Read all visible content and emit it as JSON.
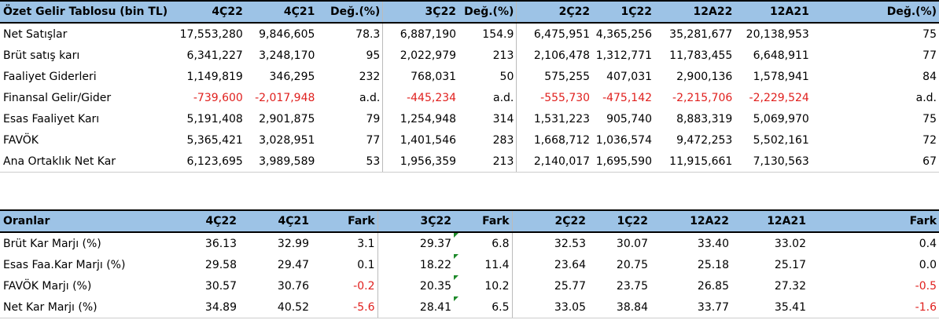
{
  "income": {
    "title": "Özet Gelir Tablosu (bin TL)",
    "headers": [
      "4Ç22",
      "4Ç21",
      "Değ.(%)",
      "3Ç22",
      "Değ.(%)",
      "2Ç22",
      "1Ç22",
      "12A22",
      "12A21",
      "Değ.(%)"
    ],
    "rows": [
      {
        "label": "Net Satışlar",
        "values": [
          "17,553,280",
          "9,846,605",
          "78.3",
          "6,887,190",
          "154.9",
          "6,475,951",
          "4,365,256",
          "35,281,677",
          "20,138,953",
          "75"
        ]
      },
      {
        "label": "Brüt satış karı",
        "values": [
          "6,341,227",
          "3,248,170",
          "95",
          "2,022,979",
          "213",
          "2,106,478",
          "1,312,771",
          "11,783,455",
          "6,648,911",
          "77"
        ]
      },
      {
        "label": "Faaliyet Giderleri",
        "values": [
          "1,149,819",
          "346,295",
          "232",
          "768,031",
          "50",
          "575,255",
          "407,031",
          "2,900,136",
          "1,578,941",
          "84"
        ]
      },
      {
        "label": "Finansal Gelir/Gider",
        "values": [
          "-739,600",
          "-2,017,948",
          "a.d.",
          "-445,234",
          "a.d.",
          "-555,730",
          "-475,142",
          "-2,215,706",
          "-2,229,524",
          "a.d."
        ]
      },
      {
        "label": "Esas Faaliyet Karı",
        "values": [
          "5,191,408",
          "2,901,875",
          "79",
          "1,254,948",
          "314",
          "1,531,223",
          "905,740",
          "8,883,319",
          "5,069,970",
          "75"
        ]
      },
      {
        "label": "FAVÖK",
        "values": [
          "5,365,421",
          "3,028,951",
          "77",
          "1,401,546",
          "283",
          "1,668,712",
          "1,036,574",
          "9,472,253",
          "5,502,161",
          "72"
        ]
      },
      {
        "label": "Ana Ortaklık Net Kar",
        "values": [
          "6,123,695",
          "3,989,589",
          "53",
          "1,956,359",
          "213",
          "2,140,017",
          "1,695,590",
          "11,915,661",
          "7,130,563",
          "67"
        ]
      }
    ]
  },
  "ratios": {
    "title": "Oranlar",
    "headers": [
      "4Ç22",
      "4Ç21",
      "Fark",
      "3Ç22",
      "Fark",
      "2Ç22",
      "1Ç22",
      "12A22",
      "12A21",
      "Fark"
    ],
    "rows": [
      {
        "label": "Brüt Kar Marjı (%)",
        "values": [
          "36.13",
          "32.99",
          "3.1",
          "29.37",
          "6.8",
          "32.53",
          "30.07",
          "33.40",
          "33.02",
          "0.4"
        ]
      },
      {
        "label": "Esas Faa.Kar Marjı (%)",
        "values": [
          "29.58",
          "29.47",
          "0.1",
          "18.22",
          "11.4",
          "23.64",
          "20.75",
          "25.18",
          "25.17",
          "0.0"
        ]
      },
      {
        "label": "FAVÖK Marjı (%)",
        "values": [
          "30.57",
          "30.76",
          "-0.2",
          "20.35",
          "10.2",
          "25.77",
          "23.75",
          "26.85",
          "27.32",
          "-0.5"
        ]
      },
      {
        "label": "Net Kar Marjı (%)",
        "values": [
          "34.89",
          "40.52",
          "-5.6",
          "28.41",
          "6.5",
          "33.05",
          "38.84",
          "33.77",
          "35.41",
          "-1.6"
        ]
      }
    ]
  },
  "colors": {
    "header_bg": "#9dc3e6",
    "negative": "#e0201e",
    "comment_marker": "#1e8a2a"
  }
}
